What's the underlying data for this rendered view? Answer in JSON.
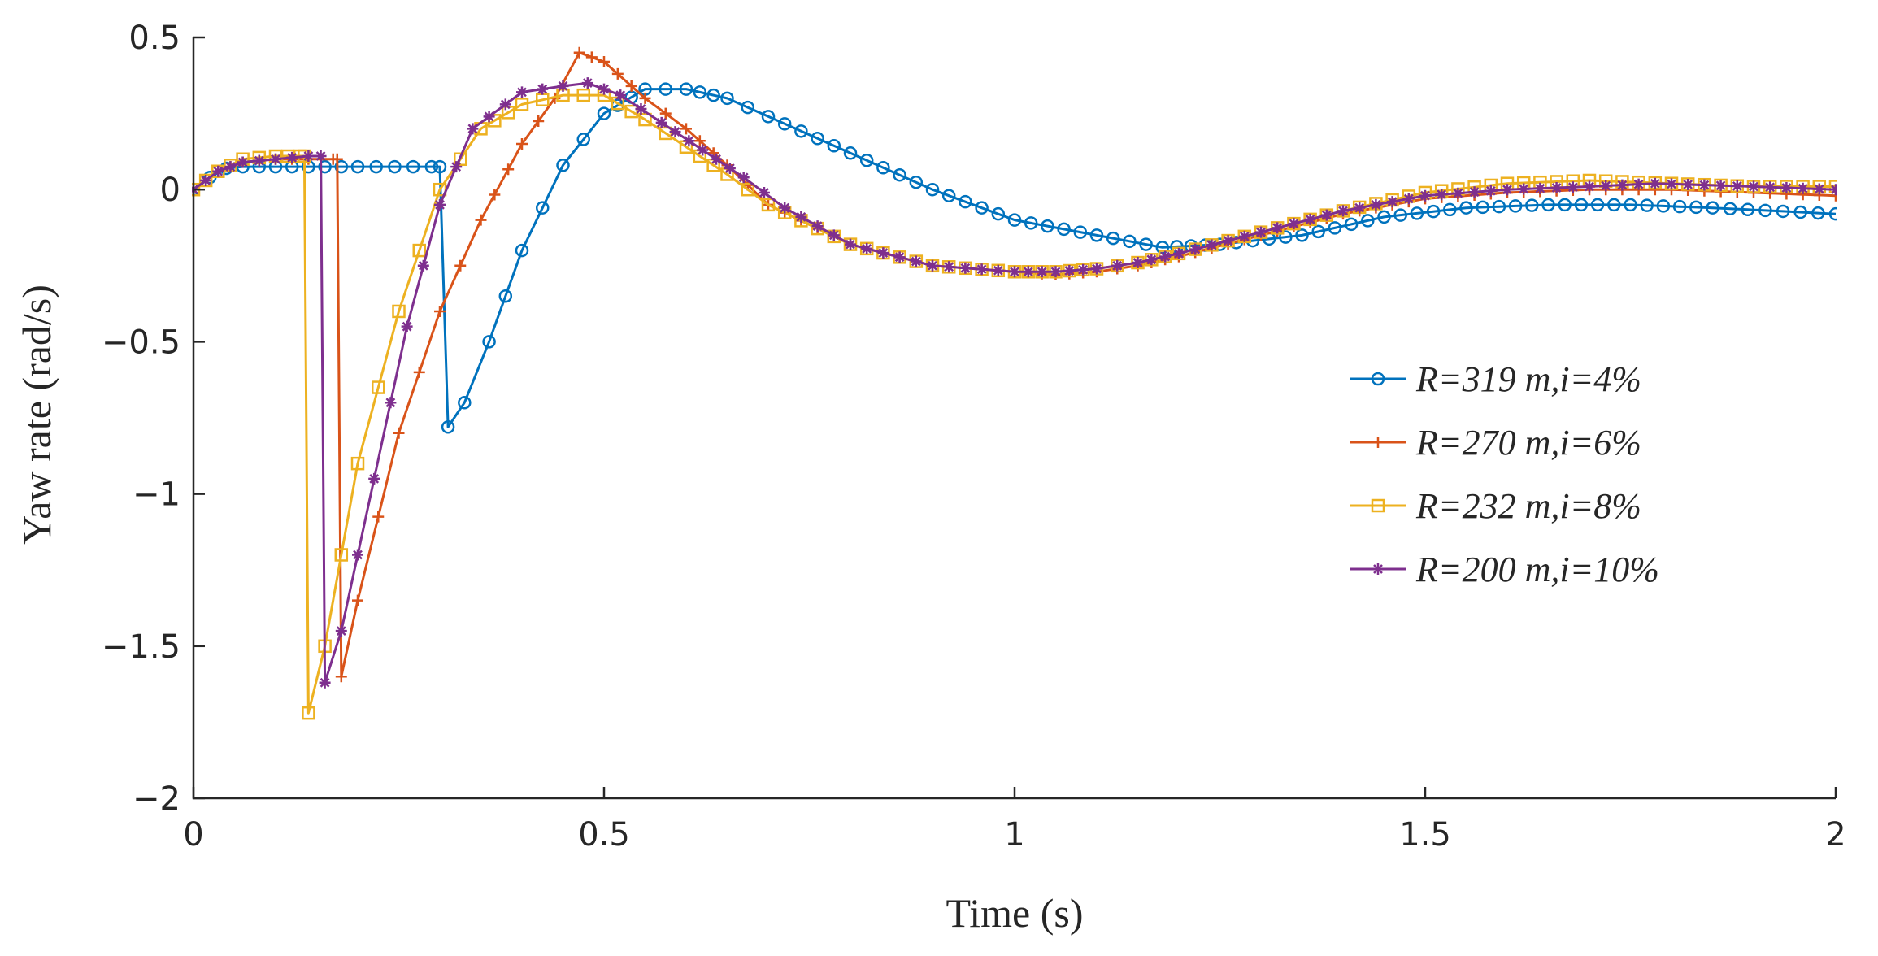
{
  "chart_data": {
    "type": "line",
    "title": "",
    "xlabel": "Time (s)",
    "ylabel": "Yaw rate (rad/s)",
    "xlim": [
      0,
      2
    ],
    "ylim": [
      -2,
      0.5
    ],
    "xticks": [
      0,
      0.5,
      1,
      1.5,
      2
    ],
    "xtick_labels": [
      "0",
      "0.5",
      "1",
      "1.5",
      "2"
    ],
    "yticks": [
      0.5,
      0,
      -0.5,
      -1,
      -1.5,
      -2
    ],
    "ytick_labels": [
      "0.5",
      "0",
      "−0.5",
      "−1",
      "−1.5",
      "−2"
    ],
    "grid": false,
    "legend_position": "right-center",
    "series": [
      {
        "name": "R=319 m,i=4%",
        "color": "#0072BD",
        "marker": "circle",
        "points": [
          [
            0,
            0
          ],
          [
            0.02,
            0.04
          ],
          [
            0.04,
            0.07
          ],
          [
            0.06,
            0.075
          ],
          [
            0.1,
            0.075
          ],
          [
            0.2,
            0.075
          ],
          [
            0.29,
            0.075
          ],
          [
            0.3,
            0.075
          ],
          [
            0.31,
            -0.78
          ],
          [
            0.33,
            -0.7
          ],
          [
            0.36,
            -0.5
          ],
          [
            0.4,
            -0.2
          ],
          [
            0.45,
            0.08
          ],
          [
            0.5,
            0.25
          ],
          [
            0.55,
            0.33
          ],
          [
            0.6,
            0.33
          ],
          [
            0.65,
            0.3
          ],
          [
            0.7,
            0.24
          ],
          [
            0.8,
            0.12
          ],
          [
            0.9,
            0.0
          ],
          [
            1.0,
            -0.1
          ],
          [
            1.1,
            -0.15
          ],
          [
            1.18,
            -0.19
          ],
          [
            1.25,
            -0.18
          ],
          [
            1.35,
            -0.15
          ],
          [
            1.45,
            -0.09
          ],
          [
            1.55,
            -0.06
          ],
          [
            1.65,
            -0.05
          ],
          [
            1.75,
            -0.05
          ],
          [
            1.85,
            -0.06
          ],
          [
            2.0,
            -0.08
          ]
        ]
      },
      {
        "name": "R=270 m,i=6%",
        "color": "#D95319",
        "marker": "plus",
        "points": [
          [
            0,
            0
          ],
          [
            0.03,
            0.06
          ],
          [
            0.06,
            0.09
          ],
          [
            0.1,
            0.1
          ],
          [
            0.14,
            0.1
          ],
          [
            0.17,
            0.1
          ],
          [
            0.175,
            0.1
          ],
          [
            0.18,
            -1.6
          ],
          [
            0.2,
            -1.35
          ],
          [
            0.25,
            -0.8
          ],
          [
            0.3,
            -0.4
          ],
          [
            0.35,
            -0.1
          ],
          [
            0.4,
            0.15
          ],
          [
            0.44,
            0.3
          ],
          [
            0.47,
            0.45
          ],
          [
            0.5,
            0.42
          ],
          [
            0.55,
            0.3
          ],
          [
            0.6,
            0.2
          ],
          [
            0.65,
            0.08
          ],
          [
            0.7,
            -0.05
          ],
          [
            0.8,
            -0.18
          ],
          [
            0.9,
            -0.25
          ],
          [
            1.0,
            -0.27
          ],
          [
            1.05,
            -0.28
          ],
          [
            1.1,
            -0.27
          ],
          [
            1.15,
            -0.25
          ],
          [
            1.2,
            -0.22
          ],
          [
            1.3,
            -0.15
          ],
          [
            1.4,
            -0.08
          ],
          [
            1.5,
            -0.03
          ],
          [
            1.6,
            -0.01
          ],
          [
            1.7,
            0.0
          ],
          [
            1.8,
            0.0
          ],
          [
            1.9,
            -0.01
          ],
          [
            2.0,
            -0.02
          ]
        ]
      },
      {
        "name": "R=232 m,i=8%",
        "color": "#EDB120",
        "marker": "square",
        "points": [
          [
            0,
            0
          ],
          [
            0.03,
            0.06
          ],
          [
            0.06,
            0.1
          ],
          [
            0.1,
            0.11
          ],
          [
            0.13,
            0.11
          ],
          [
            0.135,
            0.11
          ],
          [
            0.14,
            -1.72
          ],
          [
            0.16,
            -1.5
          ],
          [
            0.2,
            -0.9
          ],
          [
            0.25,
            -0.4
          ],
          [
            0.3,
            0.0
          ],
          [
            0.35,
            0.2
          ],
          [
            0.4,
            0.28
          ],
          [
            0.45,
            0.31
          ],
          [
            0.5,
            0.31
          ],
          [
            0.55,
            0.23
          ],
          [
            0.6,
            0.14
          ],
          [
            0.65,
            0.05
          ],
          [
            0.7,
            -0.05
          ],
          [
            0.8,
            -0.18
          ],
          [
            0.9,
            -0.25
          ],
          [
            1.0,
            -0.27
          ],
          [
            1.05,
            -0.27
          ],
          [
            1.1,
            -0.26
          ],
          [
            1.15,
            -0.24
          ],
          [
            1.2,
            -0.21
          ],
          [
            1.3,
            -0.14
          ],
          [
            1.4,
            -0.07
          ],
          [
            1.5,
            -0.01
          ],
          [
            1.6,
            0.02
          ],
          [
            1.7,
            0.03
          ],
          [
            1.8,
            0.02
          ],
          [
            1.9,
            0.01
          ],
          [
            2.0,
            0.01
          ]
        ]
      },
      {
        "name": "R=200 m,i=10%",
        "color": "#7E2F8E",
        "marker": "star",
        "points": [
          [
            0,
            0
          ],
          [
            0.03,
            0.06
          ],
          [
            0.06,
            0.09
          ],
          [
            0.1,
            0.1
          ],
          [
            0.14,
            0.11
          ],
          [
            0.155,
            0.11
          ],
          [
            0.16,
            -1.62
          ],
          [
            0.18,
            -1.45
          ],
          [
            0.22,
            -0.95
          ],
          [
            0.26,
            -0.45
          ],
          [
            0.3,
            -0.05
          ],
          [
            0.34,
            0.2
          ],
          [
            0.4,
            0.32
          ],
          [
            0.45,
            0.34
          ],
          [
            0.48,
            0.35
          ],
          [
            0.52,
            0.31
          ],
          [
            0.57,
            0.22
          ],
          [
            0.62,
            0.13
          ],
          [
            0.67,
            0.04
          ],
          [
            0.72,
            -0.06
          ],
          [
            0.8,
            -0.18
          ],
          [
            0.9,
            -0.25
          ],
          [
            1.0,
            -0.27
          ],
          [
            1.05,
            -0.27
          ],
          [
            1.1,
            -0.26
          ],
          [
            1.15,
            -0.24
          ],
          [
            1.2,
            -0.21
          ],
          [
            1.3,
            -0.14
          ],
          [
            1.4,
            -0.07
          ],
          [
            1.5,
            -0.02
          ],
          [
            1.6,
            0.0
          ],
          [
            1.7,
            0.01
          ],
          [
            1.78,
            0.02
          ],
          [
            1.9,
            0.01
          ],
          [
            2.0,
            0.0
          ]
        ]
      }
    ]
  }
}
